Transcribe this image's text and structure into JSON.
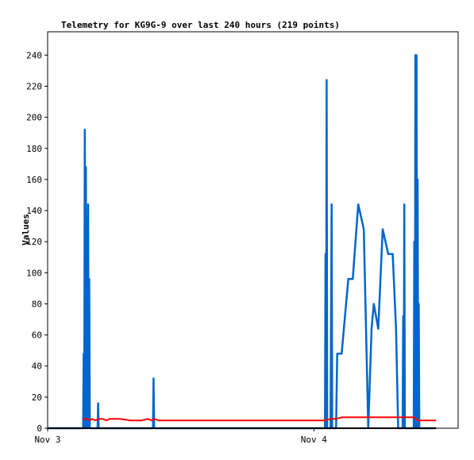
{
  "chart_data": {
    "type": "line",
    "title": "Telemetry for KG9G-9 over last 240 hours (219 points)",
    "xlabel": "",
    "ylabel": "Values",
    "ylim": [
      0,
      255
    ],
    "xlim": [
      0,
      37
    ],
    "x_units": "hours since Nov 3 00:00",
    "yticks": [
      0,
      20,
      40,
      60,
      80,
      100,
      120,
      140,
      160,
      180,
      200,
      220,
      240
    ],
    "xticks": [
      {
        "label": "Nov 3",
        "x": 0
      },
      {
        "label": "Nov 4",
        "x": 24
      }
    ],
    "grid": false,
    "legend": "none",
    "series": [
      {
        "color": "#0066cc",
        "points": [
          [
            0.0,
            0
          ],
          [
            3.2,
            0
          ],
          [
            3.25,
            48
          ],
          [
            3.3,
            0
          ],
          [
            3.35,
            192
          ],
          [
            3.4,
            0
          ],
          [
            3.45,
            168
          ],
          [
            3.5,
            0
          ],
          [
            3.55,
            136
          ],
          [
            3.6,
            0
          ],
          [
            3.65,
            144
          ],
          [
            3.7,
            0
          ],
          [
            3.75,
            96
          ],
          [
            3.8,
            0
          ],
          [
            4.5,
            0
          ],
          [
            4.55,
            16
          ],
          [
            4.6,
            0
          ],
          [
            9.5,
            0
          ],
          [
            9.55,
            32
          ],
          [
            9.6,
            0
          ],
          [
            25.0,
            0
          ],
          [
            25.05,
            112
          ],
          [
            25.1,
            0
          ],
          [
            25.15,
            224
          ],
          [
            25.2,
            0
          ],
          [
            25.5,
            0
          ],
          [
            25.55,
            72
          ],
          [
            25.6,
            144
          ],
          [
            25.65,
            0
          ],
          [
            26.0,
            0
          ],
          [
            26.1,
            48
          ],
          [
            26.5,
            48
          ],
          [
            27.1,
            96
          ],
          [
            27.5,
            96
          ],
          [
            28.0,
            144
          ],
          [
            28.5,
            128
          ],
          [
            28.9,
            0
          ],
          [
            29.2,
            64
          ],
          [
            29.4,
            80
          ],
          [
            29.8,
            64
          ],
          [
            30.2,
            128
          ],
          [
            30.7,
            112
          ],
          [
            31.1,
            112
          ],
          [
            31.4,
            64
          ],
          [
            31.6,
            0
          ],
          [
            32.0,
            0
          ],
          [
            32.05,
            72
          ],
          [
            32.1,
            0
          ],
          [
            32.15,
            144
          ],
          [
            32.2,
            0
          ],
          [
            33.0,
            0
          ],
          [
            33.05,
            120
          ],
          [
            33.1,
            0
          ],
          [
            33.15,
            240
          ],
          [
            33.2,
            0
          ],
          [
            33.25,
            240
          ],
          [
            33.3,
            0
          ],
          [
            33.35,
            160
          ],
          [
            33.4,
            0
          ],
          [
            33.45,
            80
          ],
          [
            33.5,
            0
          ],
          [
            35.0,
            0
          ]
        ]
      },
      {
        "color": "#ff0000",
        "points": [
          [
            3.2,
            6
          ],
          [
            3.6,
            6
          ],
          [
            3.8,
            5
          ],
          [
            4.0,
            6
          ],
          [
            4.3,
            5
          ],
          [
            4.6,
            6
          ],
          [
            5.0,
            6
          ],
          [
            5.3,
            5
          ],
          [
            5.6,
            6
          ],
          [
            6.0,
            6
          ],
          [
            6.5,
            6
          ],
          [
            7.5,
            5
          ],
          [
            8.5,
            5
          ],
          [
            9.0,
            6
          ],
          [
            9.4,
            5
          ],
          [
            9.6,
            6
          ],
          [
            10.0,
            5
          ],
          [
            12,
            5
          ],
          [
            16,
            5
          ],
          [
            20,
            5
          ],
          [
            24,
            5
          ],
          [
            25.0,
            5
          ],
          [
            25.5,
            6
          ],
          [
            26.0,
            6
          ],
          [
            26.5,
            7
          ],
          [
            28,
            7
          ],
          [
            30,
            7
          ],
          [
            32,
            7
          ],
          [
            33.0,
            7
          ],
          [
            33.2,
            6
          ],
          [
            33.4,
            5
          ],
          [
            35.0,
            5
          ]
        ]
      },
      {
        "color": "#000000",
        "points": [
          [
            0,
            0
          ],
          [
            35.0,
            0
          ]
        ]
      }
    ]
  }
}
